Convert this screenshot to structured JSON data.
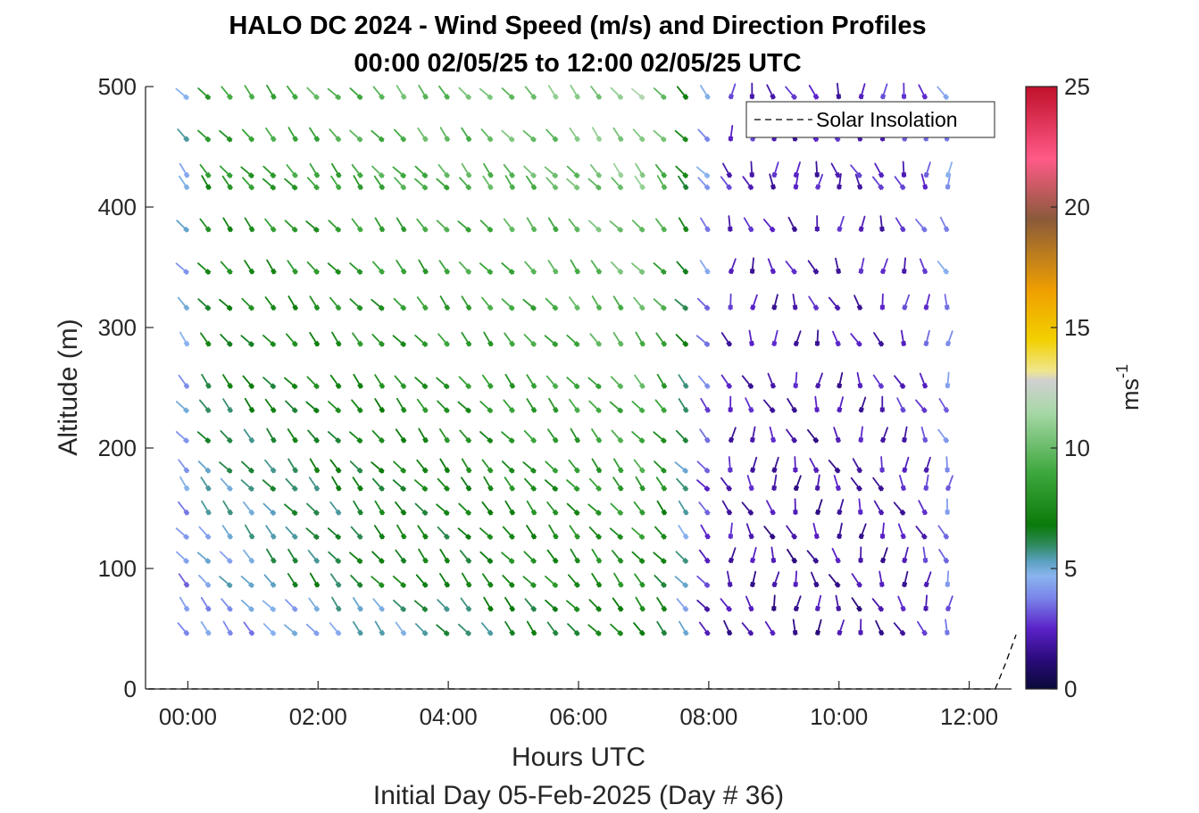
{
  "chart_data": {
    "type": "wind-barb-profile",
    "title": "HALO DC 2024 - Wind Speed (m/s) and Direction Profiles",
    "subtitle": "00:00 02/05/25 to 12:00 02/05/25  UTC",
    "xlabel": "Hours UTC",
    "xlabel2": "Initial Day 05-Feb-2025 (Day # 36)",
    "ylabel": "Altitude (m)",
    "colorbar_label": "ms",
    "colorbar_label_exp": "-1",
    "x_ticks": [
      "00:00",
      "02:00",
      "04:00",
      "06:00",
      "08:00",
      "10:00",
      "12:00"
    ],
    "x_range_hours": [
      -0.65,
      12.65
    ],
    "y_ticks": [
      0,
      100,
      200,
      300,
      400,
      500
    ],
    "ylim": [
      0,
      500
    ],
    "colorbar_ticks": [
      0,
      5,
      10,
      15,
      20,
      25
    ],
    "colorbar_range": [
      0,
      25
    ],
    "legend": {
      "entries": [
        "Solar Insolation"
      ],
      "placement": "top-right"
    },
    "altitudes_m": [
      45,
      65,
      85,
      105,
      125,
      145,
      165,
      180,
      205,
      230,
      250,
      285,
      315,
      345,
      380,
      415,
      425,
      455,
      490
    ],
    "time_start_h": 0.0,
    "time_step_h": 0.3333,
    "time_count": 36,
    "speed_by_time": [
      3.8,
      3.9,
      4.0,
      4.1,
      4.3,
      4.5,
      4.7,
      4.9,
      5.0,
      5.2,
      5.4,
      5.6,
      5.8,
      5.9,
      6.1,
      6.3,
      6.5,
      6.6,
      6.8,
      7.0,
      7.2,
      7.3,
      6.5,
      4.5,
      2.2,
      2.0,
      1.9,
      1.8,
      1.7,
      1.7,
      1.8,
      1.8,
      1.9,
      2.0,
      2.3,
      3.5
    ],
    "speed_low_layer_boost": [
      4.0,
      4.5,
      5.0,
      5.5,
      6.0,
      6.5,
      6.5,
      6.5,
      7.0,
      7.5,
      7.5,
      7.5,
      7.0,
      7.0,
      7.5,
      8.0,
      8.0,
      8.0,
      8.0,
      8.0,
      8.0,
      8.0,
      7.0,
      5.5,
      2.0,
      1.5,
      1.5,
      1.5,
      1.5,
      1.5,
      1.5,
      1.5,
      1.5,
      1.5,
      1.5,
      1.5
    ],
    "upper_speed_by_time": [
      5.0,
      8.5,
      8.7,
      8.9,
      9.0,
      9.2,
      9.3,
      9.4,
      9.5,
      9.6,
      9.7,
      9.8,
      9.9,
      10.0,
      10.1,
      10.2,
      10.3,
      10.4,
      10.6,
      10.8,
      11.0,
      11.2,
      10.0,
      7.5,
      4.5,
      2.5,
      2.4,
      2.3,
      2.3,
      2.3,
      2.3,
      2.4,
      2.5,
      2.8,
      3.2,
      4.2
    ],
    "direction_from_deg_day": 320,
    "direction_from_deg_night": 350,
    "solar_insolation": {
      "x_hours": [
        -0.6,
        12.4,
        12.55,
        12.72
      ],
      "y_m": [
        0,
        0,
        20,
        45
      ]
    }
  }
}
